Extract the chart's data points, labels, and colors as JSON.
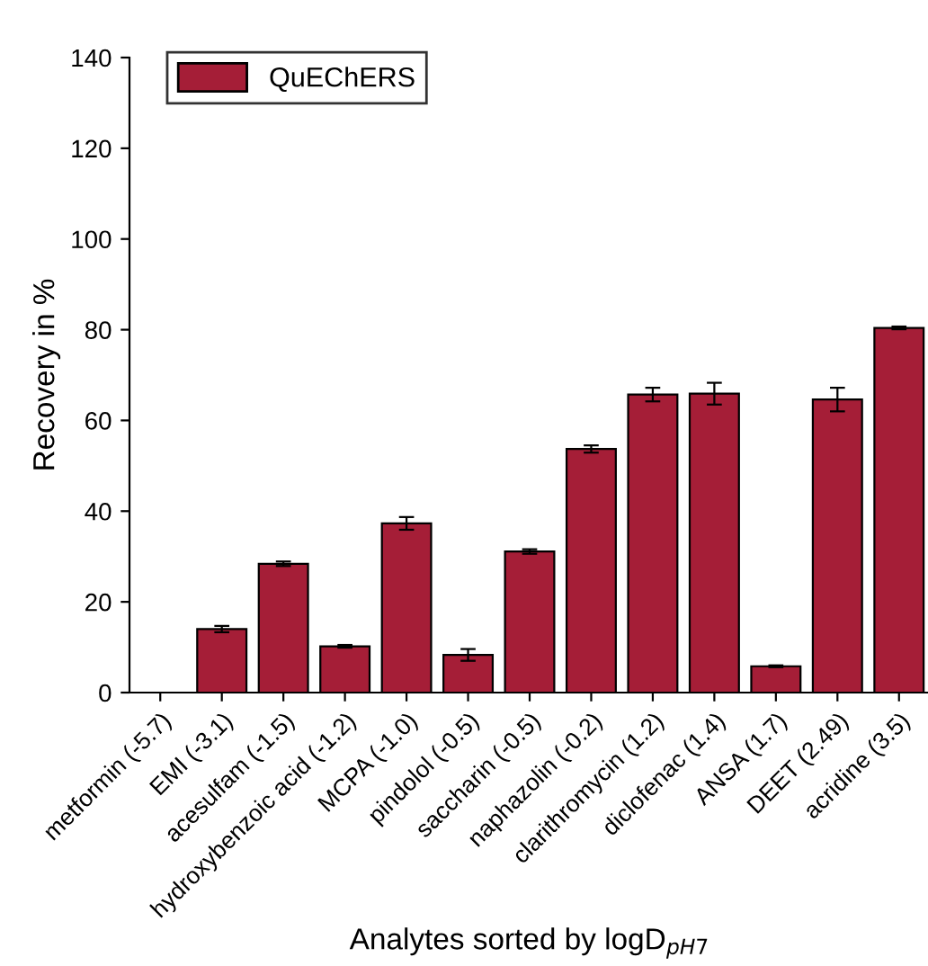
{
  "chart_data": {
    "type": "bar",
    "xlabel": "Analytes sorted by logD$_{pH7}$",
    "ylabel": "Recovery in %",
    "categories": [
      "metformin (-5.7)",
      "EMI (-3.1)",
      "acesulfam (-1.5)",
      "hydroxybenzoic acid (-1.2)",
      "MCPA (-1.0)",
      "pindolol (-0.5)",
      "saccharin (-0.5)",
      "naphazolin (-0.2)",
      "clarithromycin (1.2)",
      "diclofenac (1.4)",
      "ANSA (1.7)",
      "DEET (2.49)",
      "acridine (3.5)"
    ],
    "series": [
      {
        "name": "QuEChERS",
        "color": "#a51e37",
        "values": [
          null,
          14.0,
          28.4,
          10.2,
          37.3,
          8.3,
          31.1,
          53.7,
          65.7,
          65.9,
          5.8,
          64.6,
          80.4
        ],
        "errors": [
          null,
          0.7,
          0.5,
          0.3,
          1.4,
          1.3,
          0.5,
          0.8,
          1.5,
          2.4,
          0.2,
          2.6,
          0.3
        ]
      }
    ],
    "ylim": [
      0,
      140
    ],
    "yticks": [
      0,
      20,
      40,
      60,
      80,
      100,
      120,
      140
    ],
    "grid": false,
    "legend": "top left"
  }
}
